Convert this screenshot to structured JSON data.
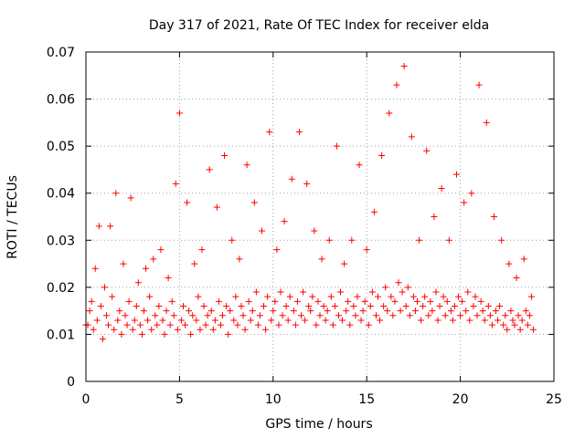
{
  "chart_data": {
    "type": "scatter",
    "title": "Day 317 of 2021, Rate Of TEC Index for receiver elda",
    "xlabel": "GPS time / hours",
    "ylabel": "ROTI / TECUs",
    "xlim": [
      0,
      25
    ],
    "ylim": [
      0,
      0.07
    ],
    "x_ticks": [
      0,
      5,
      10,
      15,
      20,
      25
    ],
    "x_tick_labels": [
      "0",
      "5",
      "10",
      "15",
      "20",
      "25"
    ],
    "y_ticks": [
      0,
      0.01,
      0.02,
      0.03,
      0.04,
      0.05,
      0.06,
      0.07
    ],
    "y_tick_labels": [
      "0",
      "0.01",
      "0.02",
      "0.03",
      "0.04",
      "0.05",
      "0.06",
      "0.07"
    ],
    "grid": true,
    "marker": "+",
    "color": "#ff0000",
    "series": [
      {
        "x": [
          0.0,
          0.3,
          0.5,
          0.7,
          1.0,
          1.3,
          1.6,
          2.0,
          2.4,
          2.8,
          3.2,
          3.6,
          4.0,
          4.4,
          4.8,
          5.0,
          5.4,
          5.8,
          6.2,
          6.6,
          7.0,
          7.4,
          7.8,
          8.2,
          8.6,
          9.0,
          9.4,
          9.8,
          10.2,
          10.6,
          11.0,
          11.4,
          11.8,
          12.2,
          12.6,
          13.0,
          13.4,
          13.8,
          14.2,
          14.6,
          15.0,
          15.4,
          15.8,
          16.2,
          16.6,
          17.0,
          17.4,
          17.8,
          18.2,
          18.6,
          19.0,
          19.4,
          19.8,
          20.2,
          20.6,
          21.0,
          21.4,
          21.8,
          22.2,
          22.6,
          23.0,
          23.4,
          23.8
        ],
        "y": [
          0.012,
          0.017,
          0.024,
          0.033,
          0.02,
          0.033,
          0.04,
          0.025,
          0.039,
          0.021,
          0.024,
          0.026,
          0.028,
          0.022,
          0.042,
          0.057,
          0.038,
          0.025,
          0.028,
          0.045,
          0.037,
          0.048,
          0.03,
          0.026,
          0.046,
          0.038,
          0.032,
          0.053,
          0.028,
          0.034,
          0.043,
          0.053,
          0.042,
          0.032,
          0.026,
          0.03,
          0.05,
          0.025,
          0.03,
          0.046,
          0.028,
          0.036,
          0.048,
          0.057,
          0.063,
          0.067,
          0.052,
          0.03,
          0.049,
          0.035,
          0.041,
          0.03,
          0.044,
          0.038,
          0.04,
          0.063,
          0.055,
          0.035,
          0.03,
          0.025,
          0.022,
          0.026,
          0.018
        ]
      },
      {
        "x": [
          0.1,
          0.2,
          0.4,
          0.6,
          0.8,
          0.9,
          1.1,
          1.2,
          1.4,
          1.5,
          1.7,
          1.8,
          1.9,
          2.1,
          2.2,
          2.3,
          2.5,
          2.6,
          2.7,
          2.9,
          3.0,
          3.1,
          3.3,
          3.4,
          3.5,
          3.7,
          3.8,
          3.9,
          4.1,
          4.2,
          4.3,
          4.5,
          4.6,
          4.7,
          4.9,
          5.1,
          5.2,
          5.3,
          5.5,
          5.6,
          5.7,
          5.9,
          6.0,
          6.1,
          6.3,
          6.4,
          6.5,
          6.7,
          6.8,
          6.9,
          7.1,
          7.2,
          7.3,
          7.5,
          7.6,
          7.7,
          7.9,
          8.0,
          8.1,
          8.3,
          8.4,
          8.5,
          8.7,
          8.8,
          8.9,
          9.1,
          9.2,
          9.3,
          9.5,
          9.6,
          9.7,
          9.9,
          10.0,
          10.1,
          10.3,
          10.4,
          10.5,
          10.7,
          10.8,
          10.9,
          11.1,
          11.2,
          11.3,
          11.5,
          11.6,
          11.7,
          11.9,
          12.0,
          12.1,
          12.3,
          12.4,
          12.5,
          12.7,
          12.8,
          12.9,
          13.1,
          13.2,
          13.3,
          13.5,
          13.6,
          13.7,
          13.9,
          14.0,
          14.1,
          14.3,
          14.4,
          14.5,
          14.7,
          14.8,
          14.9,
          15.1,
          15.2,
          15.3,
          15.5,
          15.6,
          15.7,
          15.9,
          16.0,
          16.1,
          16.3,
          16.4,
          16.5,
          16.7,
          16.8,
          16.9,
          17.1,
          17.2,
          17.3,
          17.5,
          17.6,
          17.7,
          17.9,
          18.0,
          18.1,
          18.3,
          18.4,
          18.5,
          18.7,
          18.8,
          18.9,
          19.1,
          19.2,
          19.3,
          19.5,
          19.6,
          19.7,
          19.9,
          20.0,
          20.1,
          20.3,
          20.4,
          20.5,
          20.7,
          20.8,
          20.9,
          21.1,
          21.2,
          21.3,
          21.5,
          21.6,
          21.7,
          21.9,
          22.0,
          22.1,
          22.3,
          22.4,
          22.5,
          22.7,
          22.8,
          22.9,
          23.1,
          23.2,
          23.3,
          23.5,
          23.6,
          23.7,
          23.9
        ],
        "y": [
          0.012,
          0.015,
          0.011,
          0.013,
          0.016,
          0.009,
          0.014,
          0.012,
          0.018,
          0.011,
          0.013,
          0.015,
          0.01,
          0.014,
          0.012,
          0.017,
          0.011,
          0.013,
          0.016,
          0.012,
          0.01,
          0.015,
          0.013,
          0.018,
          0.011,
          0.014,
          0.012,
          0.016,
          0.013,
          0.01,
          0.015,
          0.012,
          0.017,
          0.014,
          0.011,
          0.013,
          0.016,
          0.012,
          0.015,
          0.01,
          0.014,
          0.013,
          0.018,
          0.011,
          0.016,
          0.012,
          0.014,
          0.015,
          0.011,
          0.013,
          0.017,
          0.012,
          0.014,
          0.016,
          0.01,
          0.015,
          0.013,
          0.018,
          0.012,
          0.016,
          0.014,
          0.011,
          0.017,
          0.013,
          0.015,
          0.019,
          0.012,
          0.014,
          0.016,
          0.011,
          0.018,
          0.013,
          0.015,
          0.017,
          0.012,
          0.019,
          0.014,
          0.016,
          0.013,
          0.018,
          0.015,
          0.012,
          0.017,
          0.014,
          0.019,
          0.013,
          0.016,
          0.015,
          0.018,
          0.012,
          0.017,
          0.014,
          0.016,
          0.013,
          0.015,
          0.018,
          0.012,
          0.016,
          0.014,
          0.019,
          0.013,
          0.015,
          0.017,
          0.012,
          0.016,
          0.014,
          0.018,
          0.013,
          0.015,
          0.017,
          0.012,
          0.016,
          0.019,
          0.014,
          0.018,
          0.013,
          0.016,
          0.02,
          0.015,
          0.018,
          0.014,
          0.017,
          0.021,
          0.015,
          0.019,
          0.016,
          0.02,
          0.014,
          0.018,
          0.015,
          0.017,
          0.013,
          0.016,
          0.018,
          0.014,
          0.017,
          0.015,
          0.019,
          0.013,
          0.016,
          0.018,
          0.014,
          0.017,
          0.015,
          0.013,
          0.016,
          0.018,
          0.014,
          0.017,
          0.015,
          0.019,
          0.013,
          0.016,
          0.018,
          0.014,
          0.017,
          0.015,
          0.013,
          0.016,
          0.014,
          0.012,
          0.015,
          0.013,
          0.016,
          0.012,
          0.014,
          0.011,
          0.015,
          0.013,
          0.012,
          0.014,
          0.011,
          0.013,
          0.015,
          0.012,
          0.014,
          0.011
        ]
      }
    ]
  }
}
